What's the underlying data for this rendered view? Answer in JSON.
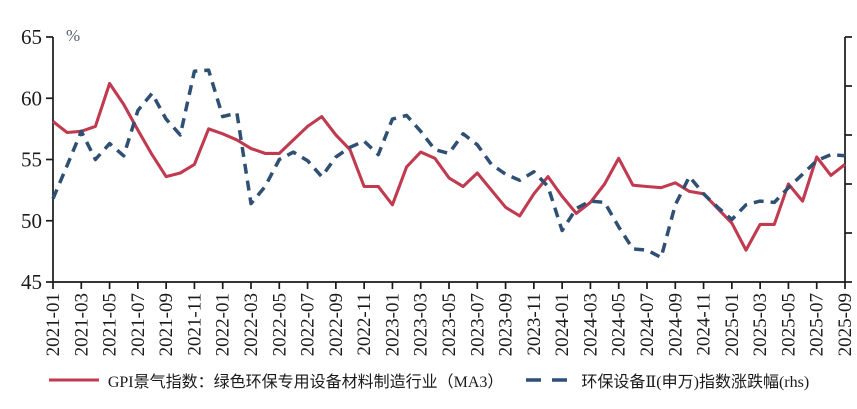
{
  "chart_data": {
    "type": "line",
    "title": "",
    "ylabel": "%",
    "ylim": [
      45,
      65
    ],
    "yticks": [
      45,
      50,
      55,
      60,
      65
    ],
    "right_axis": {
      "labeled": false,
      "tick_count": 6
    },
    "grid": false,
    "legend_position": "bottom",
    "xtick_every": 2,
    "xtick_rotation": 90,
    "x": [
      "2021-01",
      "2021-02",
      "2021-03",
      "2021-04",
      "2021-05",
      "2021-06",
      "2021-07",
      "2021-08",
      "2021-09",
      "2021-10",
      "2021-11",
      "2021-12",
      "2022-01",
      "2022-02",
      "2022-03",
      "2022-04",
      "2022-05",
      "2022-06",
      "2022-07",
      "2022-08",
      "2022-09",
      "2022-10",
      "2022-11",
      "2022-12",
      "2023-01",
      "2023-02",
      "2023-03",
      "2023-04",
      "2023-05",
      "2023-06",
      "2023-07",
      "2023-08",
      "2023-09",
      "2023-10",
      "2023-11",
      "2023-12",
      "2024-01",
      "2024-02",
      "2024-03",
      "2024-04",
      "2024-05",
      "2024-06",
      "2024-07",
      "2024-08",
      "2024-09",
      "2024-10",
      "2024-11",
      "2024-12",
      "2025-01",
      "2025-02",
      "2025-03",
      "2025-04",
      "2025-05",
      "2025-06",
      "2025-07",
      "2025-08",
      "2025-09"
    ],
    "series": [
      {
        "name": "GPI景气指数：绿色环保专用设备材料制造行业（MA3）",
        "style": "solid",
        "color": "#c03a50",
        "axis": "left",
        "values": [
          58.1,
          57.2,
          57.3,
          57.7,
          61.2,
          59.5,
          57.4,
          55.4,
          53.6,
          53.9,
          54.6,
          57.5,
          57.1,
          56.6,
          55.9,
          55.5,
          55.5,
          56.6,
          57.7,
          58.5,
          57.0,
          55.8,
          52.8,
          52.8,
          51.3,
          54.4,
          55.6,
          55.1,
          53.5,
          52.8,
          53.9,
          52.5,
          51.1,
          50.4,
          52.2,
          53.6,
          52.0,
          50.6,
          51.5,
          53.0,
          55.1,
          52.9,
          52.8,
          52.7,
          53.1,
          52.4,
          52.2,
          51.0,
          49.8,
          47.6,
          49.7,
          49.7,
          53.0,
          51.6,
          55.2,
          53.7,
          54.6
        ]
      },
      {
        "name": "环保设备Ⅱ(申万)指数涨跌幅(rhs)",
        "style": "dashed",
        "color": "#2f4f73",
        "axis": "right",
        "values": [
          51.8,
          54.5,
          57.3,
          55.0,
          56.3,
          55.3,
          59.0,
          60.4,
          58.3,
          57.0,
          62.2,
          62.3,
          58.5,
          58.8,
          51.4,
          52.8,
          55.0,
          55.6,
          54.9,
          53.6,
          55.2,
          56.0,
          56.5,
          55.4,
          58.3,
          58.6,
          57.3,
          55.8,
          55.5,
          57.1,
          56.2,
          54.6,
          53.8,
          53.3,
          54.0,
          52.8,
          49.2,
          51.0,
          51.6,
          51.5,
          49.5,
          47.7,
          47.6,
          47.0,
          51.3,
          53.6,
          52.2,
          51.1,
          50.1,
          51.3,
          51.6,
          51.5,
          52.7,
          53.8,
          54.9,
          55.4,
          55.3
        ]
      }
    ],
    "axis_color": "#1a1a1a",
    "tick_label_color": "#1a1a1a",
    "ylabel_color": "#56606e"
  }
}
